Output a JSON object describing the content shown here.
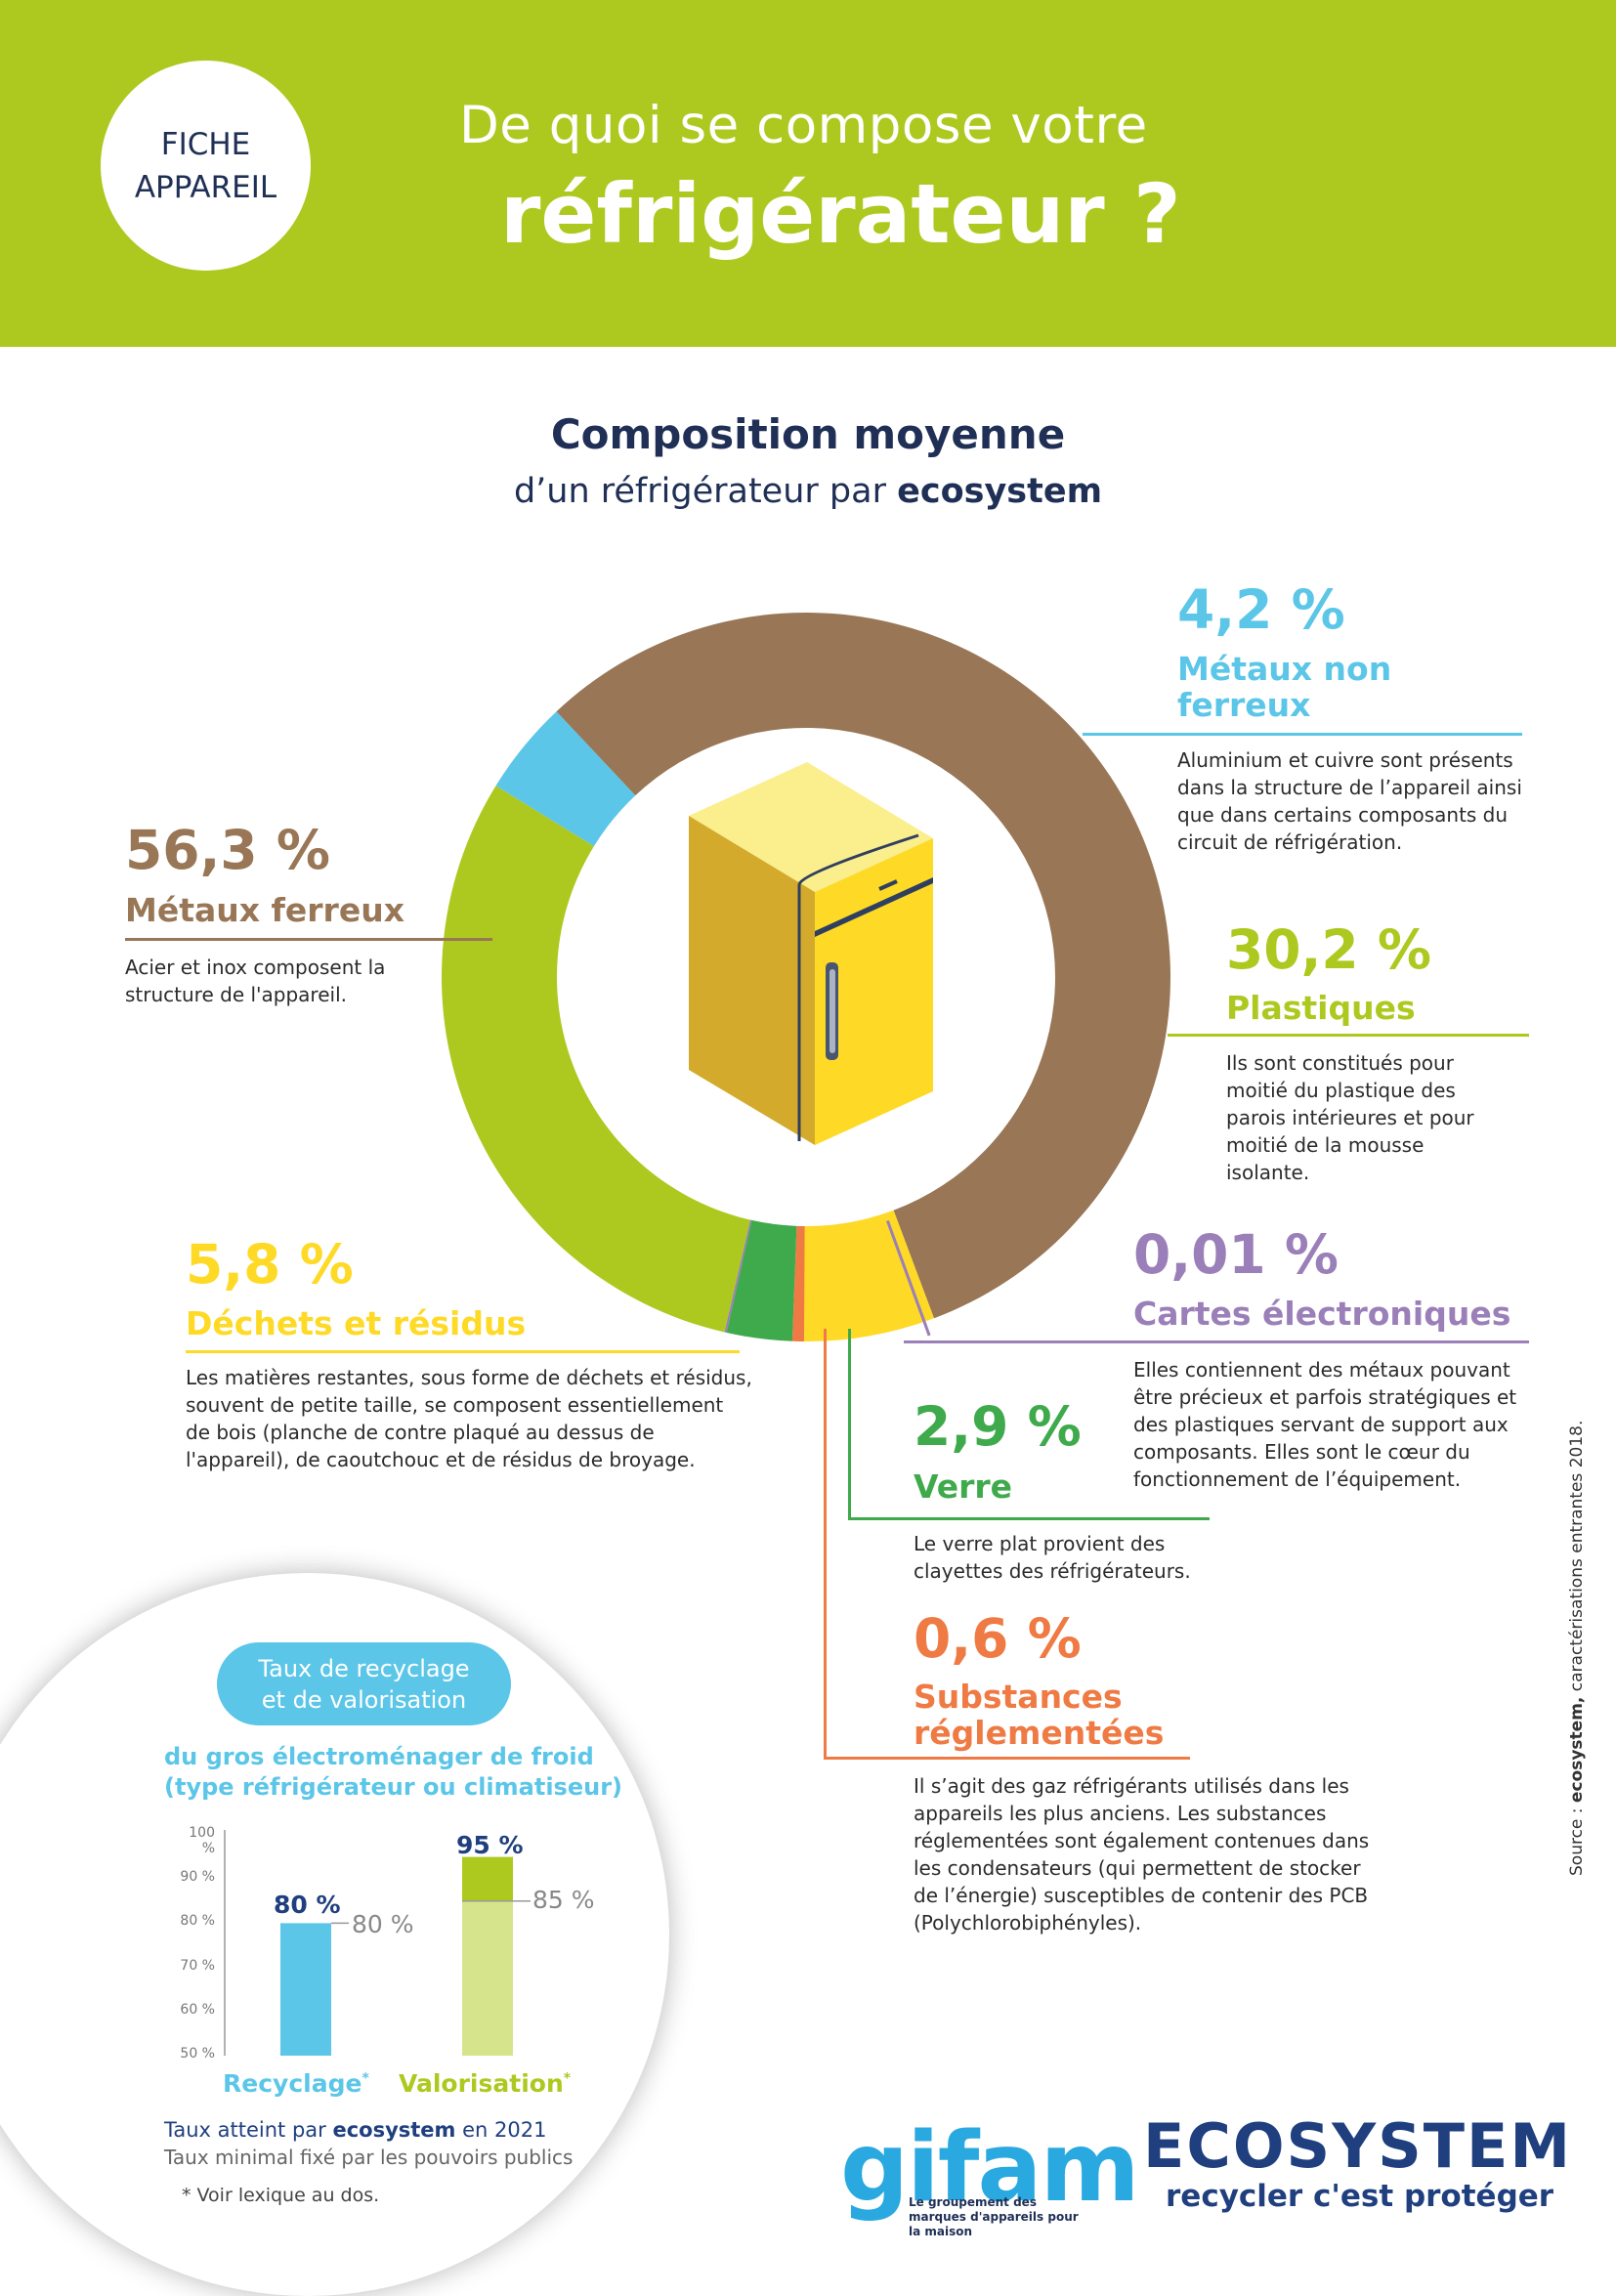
{
  "header": {
    "badge_line1": "FICHE",
    "badge_line2": "APPAREIL",
    "title_line1": "De quoi se compose votre",
    "title_line2": "réfrigérateur ?"
  },
  "composition": {
    "title": "Composition moyenne",
    "subtitle_prefix": "d’un réfrigérateur par ",
    "subtitle_brand": "ecosystem"
  },
  "chart_data": [
    {
      "type": "pie",
      "subtype": "donut",
      "slices": [
        {
          "name": "Métaux ferreux",
          "value": 56.3,
          "label": "56,3 %",
          "color": "#987656",
          "description": "Acier et inox composent la structure de l'appareil."
        },
        {
          "name": "Métaux non ferreux",
          "value": 4.2,
          "label": "4,2 %",
          "color": "#5bc6e8",
          "description": "Aluminium et cuivre sont présents dans la structure de l’appareil ainsi que dans certains composants du circuit de réfrigération."
        },
        {
          "name": "Plastiques",
          "value": 30.2,
          "label": "30,2 %",
          "color": "#adc91f",
          "description": "Ils sont constitués pour moitié du plastique des parois intérieures et pour moitié de la mousse isolante."
        },
        {
          "name": "Cartes électroniques",
          "value": 0.01,
          "label": "0,01 %",
          "color": "#9b7fb8",
          "description": "Elles contiennent des métaux pouvant être précieux et parfois stratégiques et des plastiques servant de support aux composants. Elles sont le cœur du fonctionnement de l’équipement."
        },
        {
          "name": "Verre",
          "value": 2.9,
          "label": "2,9 %",
          "color": "#3eaa4b",
          "description": "Le verre plat provient des clayettes des réfrigérateurs."
        },
        {
          "name": "Substances réglementées",
          "value": 0.6,
          "label": "0,6 %",
          "color": "#ef7a43",
          "description": "Il s’agit des gaz réfrigérants utilisés dans les appareils les plus anciens. Les substances réglementées sont également contenues dans les condensateurs (qui permettent de stocker de l’énergie) susceptibles de contenir des PCB (Polychlorobiphényles)."
        },
        {
          "name": "Déchets et résidus",
          "value": 5.8,
          "label": "5,8 %",
          "color": "#fed925",
          "description": "Les matières restantes, sous forme de déchets et résidus, souvent de petite taille, se composent essentiellement de bois (planche de contre plaqué au dessus de l'appareil), de caoutchouc et de résidus de broyage."
        }
      ]
    },
    {
      "type": "bar",
      "title_line1": "Taux de recyclage",
      "title_line2": "et de valorisation",
      "subtitle_line1": "du gros électroménager de froid",
      "subtitle_line2": "(type réfrigérateur ou climatiseur)",
      "categories": [
        "Recyclage",
        "Valorisation"
      ],
      "category_markers": [
        "*",
        "*"
      ],
      "series": [
        {
          "name": "Taux atteint par ecosystem en 2021",
          "values": [
            80,
            95
          ],
          "labels": [
            "80 %",
            "95 %"
          ]
        },
        {
          "name": "Taux minimal fixé par les pouvoirs publics",
          "values": [
            80,
            85
          ],
          "labels": [
            "80 %",
            "85 %"
          ]
        }
      ],
      "ylim": [
        50,
        100
      ],
      "yticks": [
        "50 %",
        "60 %",
        "70 %",
        "80 %",
        "90 %",
        "100 %"
      ],
      "colors": {
        "recyclage": "#5bc6e8",
        "valorisation_reached": "#adc91f",
        "valorisation_min": "#d6e48c"
      }
    }
  ],
  "legend": {
    "reached_prefix": "Taux atteint par ",
    "reached_brand": "ecosystem",
    "reached_suffix": " en 2021",
    "minimum": "Taux minimal fixé par les pouvoirs publics",
    "footnote": "* Voir lexique au dos."
  },
  "source": {
    "prefix": "Source : ",
    "brand": "ecosystem,",
    "suffix": " caractérisations entrantes 2018."
  },
  "logos": {
    "gifam": "gifam",
    "gifam_tagline": "Le groupement des marques d'appareils pour la maison",
    "ecosystem": "ECOSYSTEM",
    "ecosystem_tagline": "recycler c'est protéger"
  }
}
